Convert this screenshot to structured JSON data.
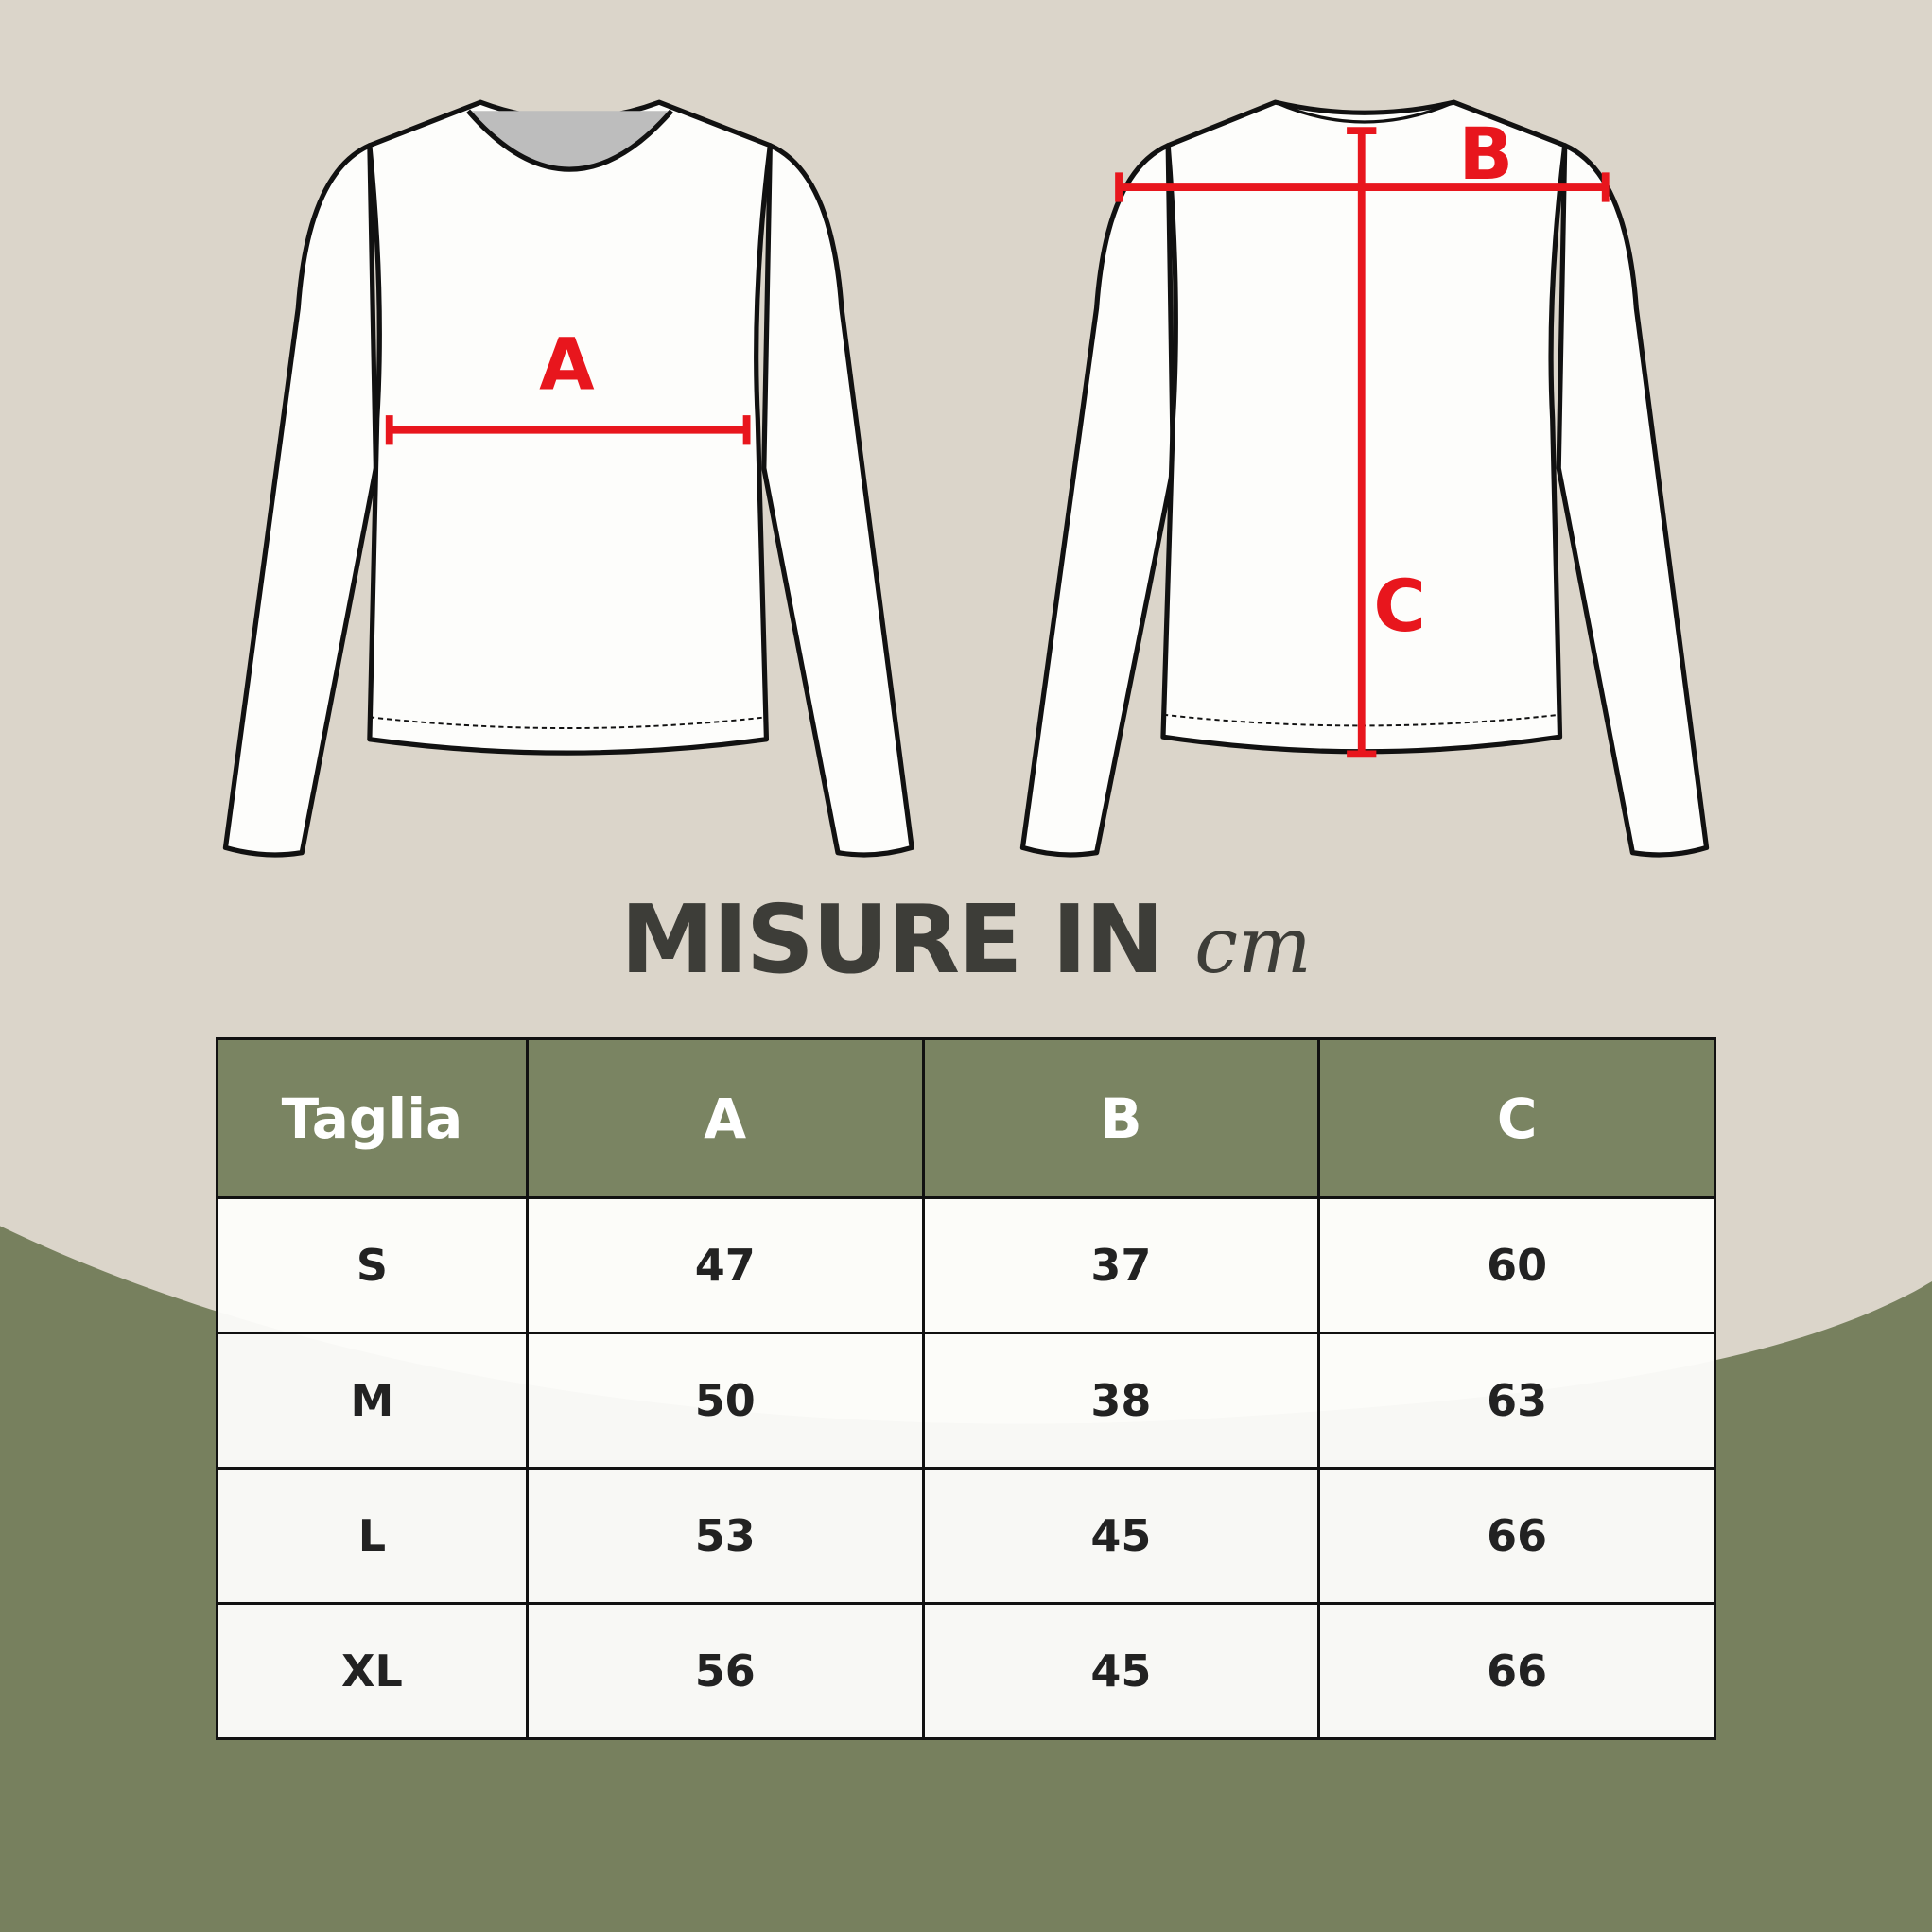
{
  "colors": {
    "background": "#dbd5ca",
    "green": "#77805e",
    "header": "#7a8462",
    "measure_red": "#e8161d",
    "text": "#222222"
  },
  "diagram": {
    "labels": {
      "a": "A",
      "b": "B",
      "c": "C"
    }
  },
  "title": {
    "main": "MISURE IN",
    "unit": "cm"
  },
  "table": {
    "headers": [
      "Taglia",
      "A",
      "B",
      "C"
    ],
    "rows": [
      [
        "S",
        "47",
        "37",
        "60"
      ],
      [
        "M",
        "50",
        "38",
        "63"
      ],
      [
        "L",
        "53",
        "45",
        "66"
      ],
      [
        "XL",
        "56",
        "45",
        "66"
      ]
    ]
  }
}
